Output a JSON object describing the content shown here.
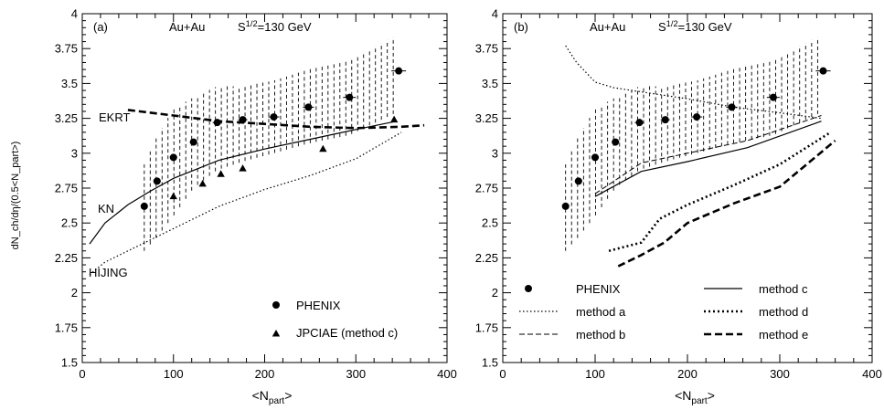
{
  "figure": {
    "ylabel": "dN_ch/dη/(0.5<N_part>)",
    "xlabel": "<N_part>"
  },
  "chart_data": [
    {
      "type": "line",
      "panel_label": "(a)",
      "system_label": "Au+Au",
      "energy_label": "S^1/2=130 GeV",
      "xlim": [
        0,
        400
      ],
      "ylim": [
        1.5,
        4
      ],
      "xticks": [
        0,
        100,
        200,
        300,
        400
      ],
      "yticks": [
        "1.5",
        "1.75",
        "2",
        "2.25",
        "2.5",
        "2.75",
        "3",
        "3.25",
        "3.5",
        "3.75",
        "4"
      ],
      "xlabel": "<N_part>",
      "ylabel": "dN_ch/dη/(0.5<N_part>)",
      "grid": false,
      "legend_position": "bottom-right",
      "legend": [
        {
          "name": "PHENIX",
          "marker": "circle"
        },
        {
          "name": "JPCIAE (method c)",
          "marker": "triangle"
        }
      ],
      "curve_labels": [
        {
          "text": "EKRT",
          "series": "EKRT"
        },
        {
          "text": "KN",
          "series": "KN"
        },
        {
          "text": "HIJING",
          "series": "HIJING"
        }
      ],
      "phenix": {
        "x": [
          68,
          82,
          100,
          122,
          148,
          176,
          210,
          248,
          293,
          347
        ],
        "y": [
          2.62,
          2.8,
          2.97,
          3.08,
          3.22,
          3.24,
          3.26,
          3.33,
          3.4,
          3.59
        ],
        "xerr": [
          3,
          4,
          4,
          4,
          5,
          5,
          6,
          6,
          7,
          8
        ],
        "band_low": [
          2.3,
          2.4,
          2.55,
          2.75,
          2.88,
          2.94,
          3.0,
          3.07,
          3.13,
          3.3
        ],
        "band_high": [
          2.92,
          3.12,
          3.32,
          3.4,
          3.48,
          3.48,
          3.52,
          3.6,
          3.68,
          3.85
        ]
      },
      "series": [
        {
          "name": "EKRT",
          "style": "dashed-thick",
          "x": [
            50,
            100,
            150,
            200,
            250,
            300,
            350,
            375
          ],
          "y": [
            3.31,
            3.27,
            3.23,
            3.21,
            3.19,
            3.18,
            3.19,
            3.2
          ]
        },
        {
          "name": "KN",
          "style": "solid",
          "x": [
            8,
            25,
            50,
            75,
            100,
            150,
            200,
            250,
            300,
            345
          ],
          "y": [
            2.35,
            2.5,
            2.63,
            2.73,
            2.82,
            2.95,
            3.03,
            3.1,
            3.17,
            3.23
          ]
        },
        {
          "name": "HIJING",
          "style": "dotted",
          "x": [
            8,
            25,
            50,
            100,
            150,
            200,
            250,
            300,
            350
          ],
          "y": [
            2.13,
            2.22,
            2.3,
            2.46,
            2.62,
            2.74,
            2.84,
            2.96,
            3.15
          ]
        },
        {
          "name": "JPCIAE (method c)",
          "style": "triangles",
          "x": [
            100,
            132,
            152,
            176,
            264,
            342
          ],
          "y": [
            2.69,
            2.78,
            2.85,
            2.89,
            3.03,
            3.24
          ]
        }
      ]
    },
    {
      "type": "line",
      "panel_label": "(b)",
      "system_label": "Au+Au",
      "energy_label": "S^1/2=130 GeV",
      "xlim": [
        0,
        400
      ],
      "ylim": [
        1.5,
        4
      ],
      "xticks": [
        0,
        100,
        200,
        300,
        400
      ],
      "yticks": [
        "1.5",
        "1.75",
        "2",
        "2.25",
        "2.5",
        "2.75",
        "3",
        "3.25",
        "3.5",
        "3.75",
        "4"
      ],
      "xlabel": "<N_part>",
      "grid": false,
      "legend_position": "bottom",
      "legend": [
        {
          "name": "PHENIX",
          "marker": "circle"
        },
        {
          "name": "method a",
          "style": "dotted"
        },
        {
          "name": "method b",
          "style": "dashed"
        },
        {
          "name": "method c",
          "style": "solid"
        },
        {
          "name": "method d",
          "style": "dotted-thick"
        },
        {
          "name": "method e",
          "style": "dashed-thick"
        }
      ],
      "phenix": {
        "x": [
          68,
          82,
          100,
          122,
          148,
          176,
          210,
          248,
          293,
          347
        ],
        "y": [
          2.62,
          2.8,
          2.97,
          3.08,
          3.22,
          3.24,
          3.26,
          3.33,
          3.4,
          3.59
        ],
        "xerr": [
          3,
          4,
          4,
          4,
          5,
          5,
          6,
          6,
          7,
          8
        ],
        "band_low": [
          2.3,
          2.4,
          2.55,
          2.75,
          2.88,
          2.94,
          3.0,
          3.07,
          3.13,
          3.3
        ],
        "band_high": [
          2.92,
          3.12,
          3.32,
          3.4,
          3.48,
          3.48,
          3.52,
          3.6,
          3.68,
          3.85
        ]
      },
      "series": [
        {
          "name": "method a",
          "style": "dotted",
          "x": [
            68,
            80,
            100,
            120,
            150,
            200,
            250,
            300,
            345
          ],
          "y": [
            3.77,
            3.65,
            3.51,
            3.47,
            3.44,
            3.39,
            3.33,
            3.29,
            3.25
          ]
        },
        {
          "name": "method b",
          "style": "dashed",
          "x": [
            100,
            150,
            200,
            265,
            345
          ],
          "y": [
            2.71,
            2.93,
            3.0,
            3.09,
            3.27
          ]
        },
        {
          "name": "method c",
          "style": "solid",
          "x": [
            100,
            150,
            200,
            265,
            345
          ],
          "y": [
            2.69,
            2.87,
            2.94,
            3.04,
            3.23
          ]
        },
        {
          "name": "method d",
          "style": "dotted-thick",
          "x": [
            115,
            150,
            170,
            200,
            250,
            300,
            355
          ],
          "y": [
            2.3,
            2.36,
            2.53,
            2.63,
            2.77,
            2.92,
            3.15
          ]
        },
        {
          "name": "method e",
          "style": "dashed-thick",
          "x": [
            125,
            150,
            175,
            200,
            250,
            300,
            360
          ],
          "y": [
            2.19,
            2.27,
            2.36,
            2.5,
            2.64,
            2.76,
            3.09
          ]
        }
      ]
    }
  ]
}
